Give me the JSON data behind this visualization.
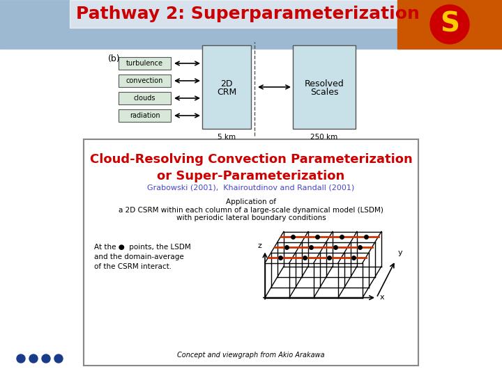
{
  "title": "Pathway 2: Superparameterization",
  "title_color": "#cc0000",
  "title_fontsize": 18,
  "bg_slide_color": "#ffffff",
  "label_b": "(b)",
  "boxes_left": [
    "turbulence",
    "convection",
    "clouds",
    "radiation"
  ],
  "box_crm_text": [
    "2D",
    "CRM"
  ],
  "box_resolved_text": [
    "Resolved",
    "Scales"
  ],
  "km_labels": [
    "5 km",
    "250 km"
  ],
  "crm_color": "#c8e0e8",
  "resolved_color": "#c8e0e8",
  "left_box_color": "#d8e8d8",
  "bottom_border_color": "#888888",
  "crm_title": "Cloud-Resolving Convection Parameterization\nor Super-Parameterization",
  "crm_title_color": "#cc0000",
  "crm_title_fontsize": 13,
  "ref_text": "Grabowski (2001),  Khairoutdinov and Randall (2001)",
  "ref_color": "#4444cc",
  "ref_fontsize": 8,
  "app_text": "Application of\na 2D CSRM within each column of a large-scale dynamical model (LSDM)\nwith periodic lateral boundary conditions",
  "app_fontsize": 7.5,
  "side_text": "At the ●  points, the LSDM\nand the domain-average\nof the CSRM interact.",
  "side_fontsize": 7.5,
  "caption_text": "Concept and viewgraph from Akio Arakawa",
  "caption_fontsize": 7,
  "dots_color": "#1a3a8a",
  "dot_count": 4
}
